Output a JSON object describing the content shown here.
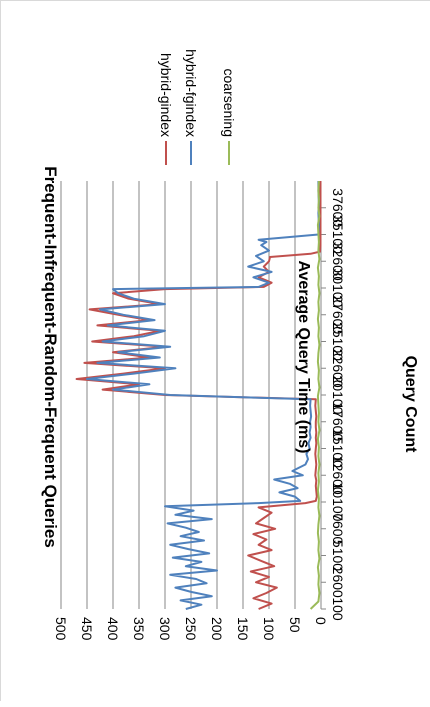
{
  "chart_data": {
    "type": "line",
    "title": "Frequent-Infrequent-Random-Frequent Queries",
    "xlabel": "Query Count",
    "ylabel": "Average Query Time (ms)",
    "orientation": "rotated-90-clockwise",
    "ylim": [
      0,
      500
    ],
    "yticks": [
      0,
      50,
      100,
      150,
      200,
      250,
      300,
      350,
      400,
      450,
      500
    ],
    "xlim": [
      100,
      40100
    ],
    "xticks": [
      100,
      2600,
      5100,
      7600,
      10100,
      12600,
      15100,
      17600,
      20100,
      22600,
      25100,
      27600,
      30100,
      32600,
      35100,
      37600
    ],
    "grid": "horizontal-value-gridlines",
    "legend_position": "right",
    "series": [
      {
        "name": "hybrid-gindex",
        "color": "#c0504d",
        "x": [
          100,
          600,
          1100,
          1600,
          2100,
          2600,
          3100,
          3600,
          4100,
          4600,
          5100,
          5600,
          6100,
          6600,
          7100,
          7600,
          8100,
          8600,
          9100,
          9600,
          10000,
          10200,
          10600,
          11100,
          11600,
          12100,
          12600,
          13100,
          13600,
          14100,
          14600,
          15100,
          15600,
          16100,
          16600,
          17100,
          17600,
          18100,
          18600,
          19100,
          19700,
          20100,
          20600,
          21100,
          21600,
          22100,
          22600,
          23100,
          23600,
          24100,
          24600,
          25100,
          25600,
          26100,
          26600,
          27100,
          27600,
          28100,
          28600,
          29100,
          29600,
          30000,
          30200,
          30600,
          31100,
          31600,
          32100,
          32600,
          33000,
          33300,
          33500,
          34100,
          35100,
          36100,
          37100,
          38100,
          39100,
          40100
        ],
        "values": [
          120,
          95,
          130,
          105,
          85,
          125,
          100,
          135,
          90,
          115,
          140,
          95,
          120,
          105,
          130,
          88,
          125,
          110,
          95,
          120,
          30,
          10,
          8,
          9,
          10,
          9,
          11,
          10,
          9,
          10,
          11,
          10,
          9,
          10,
          9,
          10,
          10,
          9,
          10,
          11,
          10,
          300,
          420,
          350,
          470,
          380,
          300,
          455,
          330,
          400,
          300,
          440,
          360,
          310,
          430,
          330,
          390,
          445,
          310,
          370,
          400,
          300,
          110,
          95,
          120,
          100,
          110,
          100,
          98,
          20,
          2,
          1,
          1,
          1,
          1,
          1,
          1,
          1
        ]
      },
      {
        "name": "hybrid-fgindex",
        "color": "#4f81bd",
        "x": [
          100,
          500,
          900,
          1300,
          1700,
          2100,
          2500,
          2900,
          3300,
          3700,
          4100,
          4500,
          4900,
          5300,
          5700,
          6100,
          6500,
          6900,
          7300,
          7700,
          8100,
          8500,
          8900,
          9300,
          9700,
          10000,
          10200,
          10600,
          11000,
          11400,
          11800,
          12200,
          12600,
          13000,
          13600,
          14100,
          14600,
          15100,
          15600,
          16100,
          16600,
          17100,
          17600,
          18100,
          18600,
          19100,
          19700,
          20100,
          20600,
          21100,
          21600,
          22100,
          22600,
          23100,
          23600,
          24100,
          24600,
          25100,
          25600,
          26100,
          26600,
          27100,
          27600,
          28100,
          28600,
          29100,
          29600,
          30000,
          30200,
          30600,
          31100,
          31600,
          32100,
          32600,
          33100,
          33600,
          34100,
          34400,
          34600,
          35100,
          36100,
          37100,
          38100,
          39100,
          40100
        ],
        "values": [
          260,
          230,
          270,
          210,
          250,
          280,
          220,
          240,
          290,
          200,
          260,
          230,
          285,
          215,
          255,
          290,
          225,
          270,
          235,
          260,
          295,
          210,
          280,
          245,
          300,
          120,
          40,
          50,
          80,
          45,
          60,
          90,
          35,
          55,
          30,
          25,
          28,
          22,
          24,
          20,
          22,
          20,
          21,
          19,
          20,
          21,
          20,
          290,
          400,
          330,
          450,
          360,
          280,
          430,
          310,
          390,
          290,
          420,
          340,
          300,
          410,
          320,
          380,
          425,
          300,
          360,
          390,
          400,
          120,
          100,
          130,
          95,
          140,
          110,
          125,
          100,
          115,
          105,
          120,
          5,
          4,
          5,
          4,
          5,
          5
        ]
      },
      {
        "name": "coarsening",
        "color": "#9bbb59",
        "x": [
          100,
          800,
          1600,
          2400,
          3200,
          4000,
          4800,
          5600,
          6400,
          7200,
          8000,
          8800,
          9600,
          10400,
          11200,
          12000,
          12800,
          13600,
          14400,
          15200,
          16000,
          16800,
          17600,
          18400,
          19200,
          20000,
          20800,
          21600,
          22400,
          23200,
          24000,
          24800,
          25600,
          26400,
          27200,
          28000,
          28800,
          29600,
          30400,
          31200,
          32000,
          32800,
          33600,
          34400,
          35200,
          36000,
          36800,
          37600,
          38400,
          39200,
          40100
        ],
        "values": [
          20,
          5,
          3,
          5,
          4,
          6,
          3,
          5,
          4,
          6,
          5,
          3,
          5,
          4,
          6,
          4,
          5,
          3,
          5,
          4,
          6,
          3,
          5,
          4,
          5,
          6,
          3,
          5,
          4,
          6,
          5,
          3,
          5,
          4,
          6,
          4,
          5,
          3,
          5,
          4,
          6,
          3,
          5,
          4,
          5,
          6,
          3,
          5,
          4,
          5,
          4
        ]
      }
    ]
  }
}
